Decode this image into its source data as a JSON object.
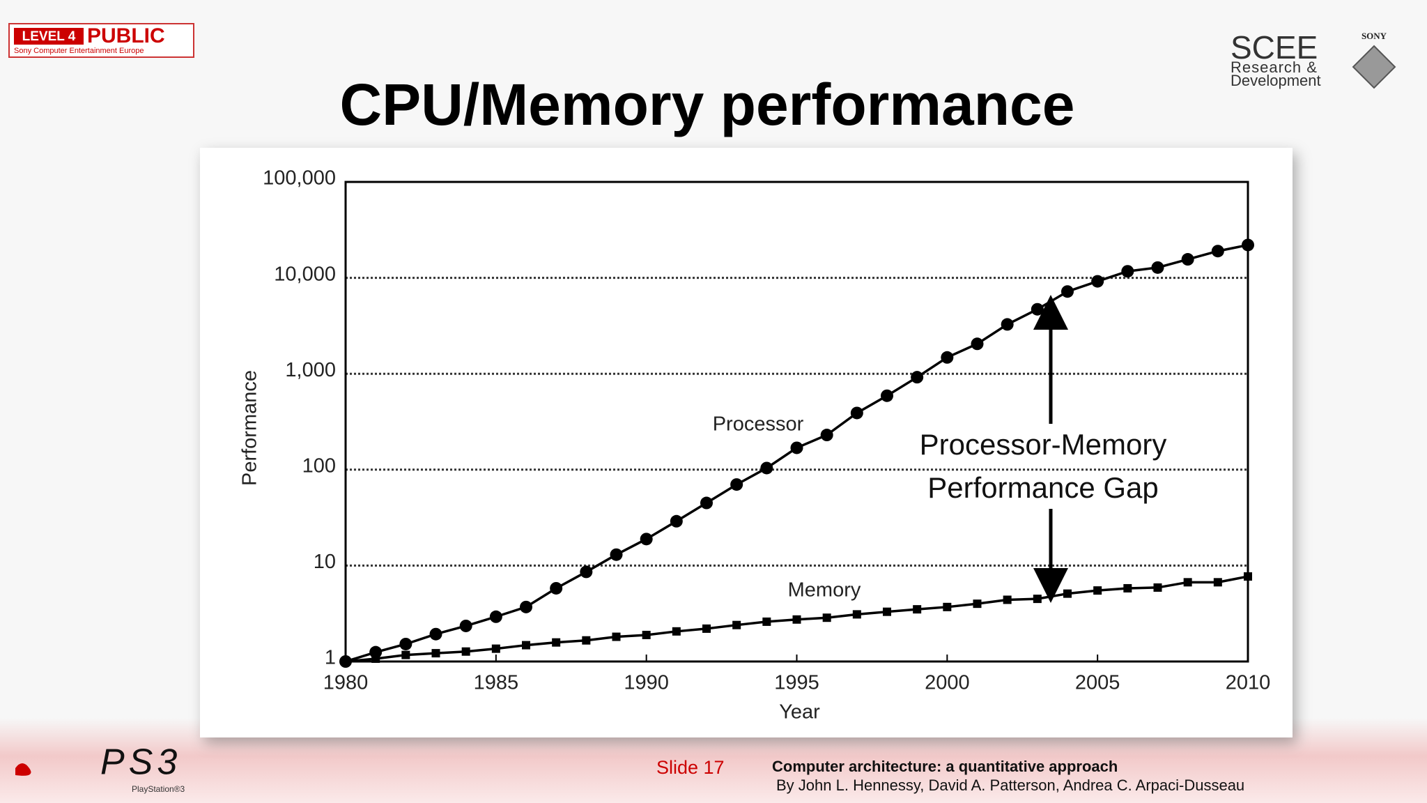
{
  "header": {
    "badge_level": "LEVEL 4",
    "badge_class": "PUBLIC",
    "badge_org": "Sony Computer Entertainment Europe",
    "brand": "SCEE",
    "brand_sub_1": "Research &",
    "brand_sub_2": "Development",
    "sony": "SONY"
  },
  "chart_data": {
    "type": "line",
    "title": "CPU/Memory performance",
    "x_label": "Year",
    "y_label": "Performance",
    "log_y": true,
    "grid": true,
    "x": [
      1980,
      1981,
      1982,
      1983,
      1984,
      1985,
      1986,
      1987,
      1988,
      1989,
      1990,
      1991,
      1992,
      1993,
      1994,
      1995,
      1996,
      1997,
      1998,
      1999,
      2000,
      2001,
      2002,
      2003,
      2004,
      2005,
      2006,
      2007,
      2008,
      2009,
      2010
    ],
    "xlim": [
      1980,
      2010
    ],
    "xticks": [
      1980,
      1985,
      1990,
      1995,
      2000,
      2005,
      2010
    ],
    "ylim": [
      1,
      100000
    ],
    "yticks": [
      1,
      10,
      100,
      {
        "value": 1000,
        "label": "1,000"
      },
      {
        "value": 10000,
        "label": "10,000"
      },
      {
        "value": 100000,
        "label": "100,000"
      }
    ],
    "series": [
      {
        "name": "Processor",
        "color": "#000000",
        "marker": "circle",
        "values": [
          1,
          1.25,
          1.52,
          1.93,
          2.35,
          2.93,
          3.7,
          5.8,
          8.6,
          13,
          18.9,
          29,
          45,
          70,
          104,
          169,
          230,
          390,
          590,
          920,
          1480,
          2050,
          3270,
          4700,
          7200,
          9200,
          11700,
          12800,
          15600,
          19000,
          22000
        ]
      },
      {
        "name": "Memory",
        "color": "#000000",
        "marker": "square",
        "values": [
          1,
          1.07,
          1.17,
          1.22,
          1.27,
          1.36,
          1.48,
          1.58,
          1.66,
          1.81,
          1.89,
          2.06,
          2.2,
          2.4,
          2.6,
          2.74,
          2.86,
          3.1,
          3.3,
          3.5,
          3.7,
          4.0,
          4.4,
          4.5,
          5.1,
          5.5,
          5.8,
          5.9,
          6.7,
          6.7,
          7.7
        ]
      }
    ],
    "annotations": [
      "Processor-Memory",
      "Performance Gap"
    ]
  },
  "footer": {
    "console": "PS3",
    "console_sub": "PlayStation®3",
    "slide": "Slide 17",
    "source_title": "Computer architecture: a quantitative approach",
    "source_authors": "By John L. Hennessy, David A. Patterson, Andrea C. Arpaci-Dusseau"
  }
}
